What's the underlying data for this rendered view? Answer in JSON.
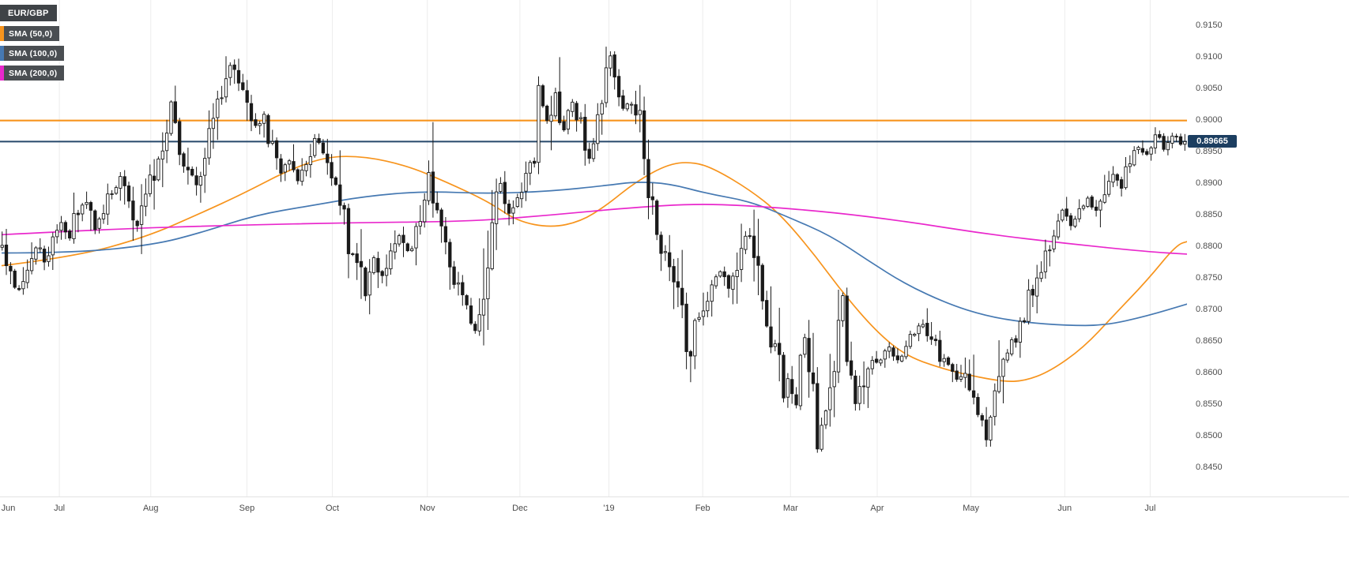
{
  "legend": {
    "symbol": "EUR/GBP",
    "indicators": [
      {
        "label": "SMA (50,0)",
        "color": "#f7941d"
      },
      {
        "label": "SMA (100,0)",
        "color": "#4679b2"
      },
      {
        "label": "SMA (200,0)",
        "color": "#e928cc"
      }
    ]
  },
  "colors": {
    "background": "#ffffff",
    "grid": "#ececec",
    "axis_text": "#4d4d4d",
    "candle_stroke": "#1a1a1a",
    "candle_up_fill": "#ffffff",
    "candle_down_fill": "#1a1a1a",
    "level_orange": "#f7941d",
    "level_navy": "#27496b",
    "price_badge_bg": "#1c3e60",
    "price_badge_fg": "#ffffff"
  },
  "y_axis": {
    "top_price": 0.9191,
    "bottom_price": 0.8404,
    "ticks": [
      "0.9150",
      "0.9100",
      "0.9050",
      "0.9000",
      "0.8950",
      "0.8900",
      "0.8850",
      "0.8800",
      "0.8750",
      "0.8700",
      "0.8650",
      "0.8600",
      "0.8550",
      "0.8500",
      "0.8450"
    ]
  },
  "x_axis": {
    "labels": [
      {
        "text": "Jun",
        "pos": 0.007
      },
      {
        "text": "Jul",
        "pos": 0.05
      },
      {
        "text": "Aug",
        "pos": 0.127
      },
      {
        "text": "Sep",
        "pos": 0.208
      },
      {
        "text": "Oct",
        "pos": 0.28
      },
      {
        "text": "Nov",
        "pos": 0.36
      },
      {
        "text": "Dec",
        "pos": 0.438
      },
      {
        "text": "'19",
        "pos": 0.513
      },
      {
        "text": "Feb",
        "pos": 0.592
      },
      {
        "text": "Mar",
        "pos": 0.666
      },
      {
        "text": "Apr",
        "pos": 0.739
      },
      {
        "text": "May",
        "pos": 0.818
      },
      {
        "text": "Jun",
        "pos": 0.897
      },
      {
        "text": "Jul",
        "pos": 0.969
      }
    ]
  },
  "price_marker": {
    "label": "0.89665",
    "value": 0.89665
  },
  "chart_data": {
    "type": "candlestick",
    "symbol": "EUR/GBP",
    "candle_count": 281,
    "y_range": [
      0.845,
      0.915
    ],
    "grid": "vertical-months",
    "legend_position": "top-left",
    "horizontal_levels": [
      {
        "value": 0.9,
        "color": "#f7941d",
        "width": 2.2
      },
      {
        "value": 0.89665,
        "color": "#27496b",
        "width": 2.0
      }
    ],
    "price_path_anchors": [
      [
        0,
        0.88
      ],
      [
        2,
        0.8755
      ],
      [
        4,
        0.8735
      ],
      [
        6,
        0.8775
      ],
      [
        8,
        0.88
      ],
      [
        10,
        0.878
      ],
      [
        12,
        0.8815
      ],
      [
        14,
        0.884
      ],
      [
        16,
        0.881
      ],
      [
        18,
        0.886
      ],
      [
        20,
        0.8878
      ],
      [
        22,
        0.883
      ],
      [
        24,
        0.8855
      ],
      [
        26,
        0.889
      ],
      [
        28,
        0.891
      ],
      [
        30,
        0.886
      ],
      [
        32,
        0.883
      ],
      [
        34,
        0.888
      ],
      [
        36,
        0.892
      ],
      [
        38,
        0.896
      ],
      [
        40,
        0.903
      ],
      [
        42,
        0.896
      ],
      [
        44,
        0.892
      ],
      [
        46,
        0.8905
      ],
      [
        48,
        0.895
      ],
      [
        50,
        0.8995
      ],
      [
        52,
        0.904
      ],
      [
        54,
        0.909
      ],
      [
        56,
        0.906
      ],
      [
        58,
        0.904
      ],
      [
        60,
        0.899
      ],
      [
        62,
        0.901
      ],
      [
        64,
        0.895
      ],
      [
        66,
        0.892
      ],
      [
        68,
        0.894
      ],
      [
        70,
        0.89
      ],
      [
        72,
        0.893
      ],
      [
        74,
        0.8975
      ],
      [
        76,
        0.894
      ],
      [
        78,
        0.892
      ],
      [
        80,
        0.888
      ],
      [
        82,
        0.879
      ],
      [
        84,
        0.8775
      ],
      [
        86,
        0.8725
      ],
      [
        88,
        0.878
      ],
      [
        90,
        0.8755
      ],
      [
        92,
        0.879
      ],
      [
        94,
        0.8815
      ],
      [
        96,
        0.879
      ],
      [
        98,
        0.8835
      ],
      [
        100,
        0.887
      ],
      [
        101,
        0.8915
      ],
      [
        103,
        0.884
      ],
      [
        105,
        0.879
      ],
      [
        107,
        0.8745
      ],
      [
        109,
        0.8725
      ],
      [
        111,
        0.8695
      ],
      [
        112,
        0.8665
      ],
      [
        114,
        0.8735
      ],
      [
        116,
        0.8845
      ],
      [
        118,
        0.89
      ],
      [
        120,
        0.8855
      ],
      [
        122,
        0.888
      ],
      [
        124,
        0.892
      ],
      [
        126,
        0.896
      ],
      [
        127,
        0.905
      ],
      [
        129,
        0.9
      ],
      [
        131,
        0.904
      ],
      [
        133,
        0.899
      ],
      [
        135,
        0.903
      ],
      [
        137,
        0.899
      ],
      [
        139,
        0.8945
      ],
      [
        141,
        0.9005
      ],
      [
        142,
        0.903
      ],
      [
        144,
        0.91
      ],
      [
        145,
        0.905
      ],
      [
        147,
        0.9025
      ],
      [
        149,
        0.903
      ],
      [
        151,
        0.899
      ],
      [
        152,
        0.8905
      ],
      [
        154,
        0.886
      ],
      [
        156,
        0.88
      ],
      [
        158,
        0.8775
      ],
      [
        160,
        0.873
      ],
      [
        162,
        0.865
      ],
      [
        163,
        0.863
      ],
      [
        164,
        0.868
      ],
      [
        166,
        0.8705
      ],
      [
        168,
        0.874
      ],
      [
        170,
        0.876
      ],
      [
        172,
        0.873
      ],
      [
        174,
        0.8775
      ],
      [
        176,
        0.882
      ],
      [
        178,
        0.879
      ],
      [
        180,
        0.872
      ],
      [
        182,
        0.8655
      ],
      [
        184,
        0.861
      ],
      [
        185,
        0.8565
      ],
      [
        186,
        0.859
      ],
      [
        188,
        0.856
      ],
      [
        190,
        0.865
      ],
      [
        192,
        0.858
      ],
      [
        193,
        0.8495
      ],
      [
        195,
        0.854
      ],
      [
        197,
        0.862
      ],
      [
        199,
        0.873
      ],
      [
        200,
        0.864
      ],
      [
        202,
        0.856
      ],
      [
        204,
        0.8585
      ],
      [
        206,
        0.862
      ],
      [
        208,
        0.8615
      ],
      [
        210,
        0.864
      ],
      [
        212,
        0.862
      ],
      [
        214,
        0.865
      ],
      [
        216,
        0.866
      ],
      [
        218,
        0.868
      ],
      [
        220,
        0.8655
      ],
      [
        222,
        0.8625
      ],
      [
        224,
        0.8605
      ],
      [
        226,
        0.859
      ],
      [
        228,
        0.86
      ],
      [
        230,
        0.856
      ],
      [
        232,
        0.851
      ],
      [
        233,
        0.8495
      ],
      [
        235,
        0.856
      ],
      [
        237,
        0.861
      ],
      [
        239,
        0.864
      ],
      [
        241,
        0.867
      ],
      [
        243,
        0.8715
      ],
      [
        245,
        0.8755
      ],
      [
        247,
        0.879
      ],
      [
        249,
        0.883
      ],
      [
        251,
        0.8855
      ],
      [
        253,
        0.883
      ],
      [
        255,
        0.8855
      ],
      [
        257,
        0.888
      ],
      [
        259,
        0.886
      ],
      [
        261,
        0.889
      ],
      [
        263,
        0.8915
      ],
      [
        265,
        0.889
      ],
      [
        267,
        0.894
      ],
      [
        269,
        0.896
      ],
      [
        271,
        0.8945
      ],
      [
        273,
        0.8975
      ],
      [
        275,
        0.8955
      ],
      [
        277,
        0.8975
      ],
      [
        279,
        0.896
      ],
      [
        280,
        0.89665
      ]
    ],
    "sma_series": [
      {
        "name": "SMA 50",
        "color": "#f7941d",
        "points": [
          [
            0,
            0.877
          ],
          [
            17,
            0.8784
          ],
          [
            34,
            0.8815
          ],
          [
            47,
            0.8853
          ],
          [
            57,
            0.8884
          ],
          [
            68,
            0.8922
          ],
          [
            77,
            0.8943
          ],
          [
            86,
            0.8943
          ],
          [
            96,
            0.8928
          ],
          [
            105,
            0.8903
          ],
          [
            115,
            0.8872
          ],
          [
            122,
            0.884
          ],
          [
            130,
            0.883
          ],
          [
            137,
            0.884
          ],
          [
            143,
            0.8865
          ],
          [
            150,
            0.8903
          ],
          [
            158,
            0.8932
          ],
          [
            164,
            0.8934
          ],
          [
            169,
            0.8922
          ],
          [
            177,
            0.889
          ],
          [
            184,
            0.8853
          ],
          [
            192,
            0.879
          ],
          [
            199,
            0.8727
          ],
          [
            207,
            0.8665
          ],
          [
            214,
            0.8627
          ],
          [
            222,
            0.8608
          ],
          [
            229,
            0.8596
          ],
          [
            237,
            0.8586
          ],
          [
            242,
            0.8587
          ],
          [
            248,
            0.8602
          ],
          [
            256,
            0.864
          ],
          [
            263,
            0.869
          ],
          [
            271,
            0.8746
          ],
          [
            278,
            0.8803
          ],
          [
            281,
            0.8809
          ]
        ]
      },
      {
        "name": "SMA 100",
        "color": "#4679b2",
        "points": [
          [
            0,
            0.879
          ],
          [
            17,
            0.879
          ],
          [
            36,
            0.8803
          ],
          [
            47,
            0.8822
          ],
          [
            60,
            0.885
          ],
          [
            73,
            0.8865
          ],
          [
            86,
            0.888
          ],
          [
            100,
            0.8888
          ],
          [
            115,
            0.8884
          ],
          [
            130,
            0.8888
          ],
          [
            143,
            0.8897
          ],
          [
            150,
            0.8903
          ],
          [
            158,
            0.89
          ],
          [
            167,
            0.8884
          ],
          [
            177,
            0.8872
          ],
          [
            186,
            0.8847
          ],
          [
            196,
            0.8818
          ],
          [
            205,
            0.8778
          ],
          [
            214,
            0.874
          ],
          [
            224,
            0.8709
          ],
          [
            233,
            0.869
          ],
          [
            242,
            0.868
          ],
          [
            252,
            0.8675
          ],
          [
            261,
            0.8675
          ],
          [
            271,
            0.869
          ],
          [
            281,
            0.871
          ]
        ]
      },
      {
        "name": "SMA 200",
        "color": "#e928cc",
        "points": [
          [
            0,
            0.8819
          ],
          [
            26,
            0.8828
          ],
          [
            55,
            0.8834
          ],
          [
            83,
            0.8838
          ],
          [
            111,
            0.884
          ],
          [
            130,
            0.885
          ],
          [
            149,
            0.8862
          ],
          [
            164,
            0.8868
          ],
          [
            177,
            0.8865
          ],
          [
            196,
            0.8855
          ],
          [
            214,
            0.884
          ],
          [
            233,
            0.882
          ],
          [
            252,
            0.8805
          ],
          [
            271,
            0.8792
          ],
          [
            281,
            0.8788
          ]
        ]
      }
    ]
  }
}
